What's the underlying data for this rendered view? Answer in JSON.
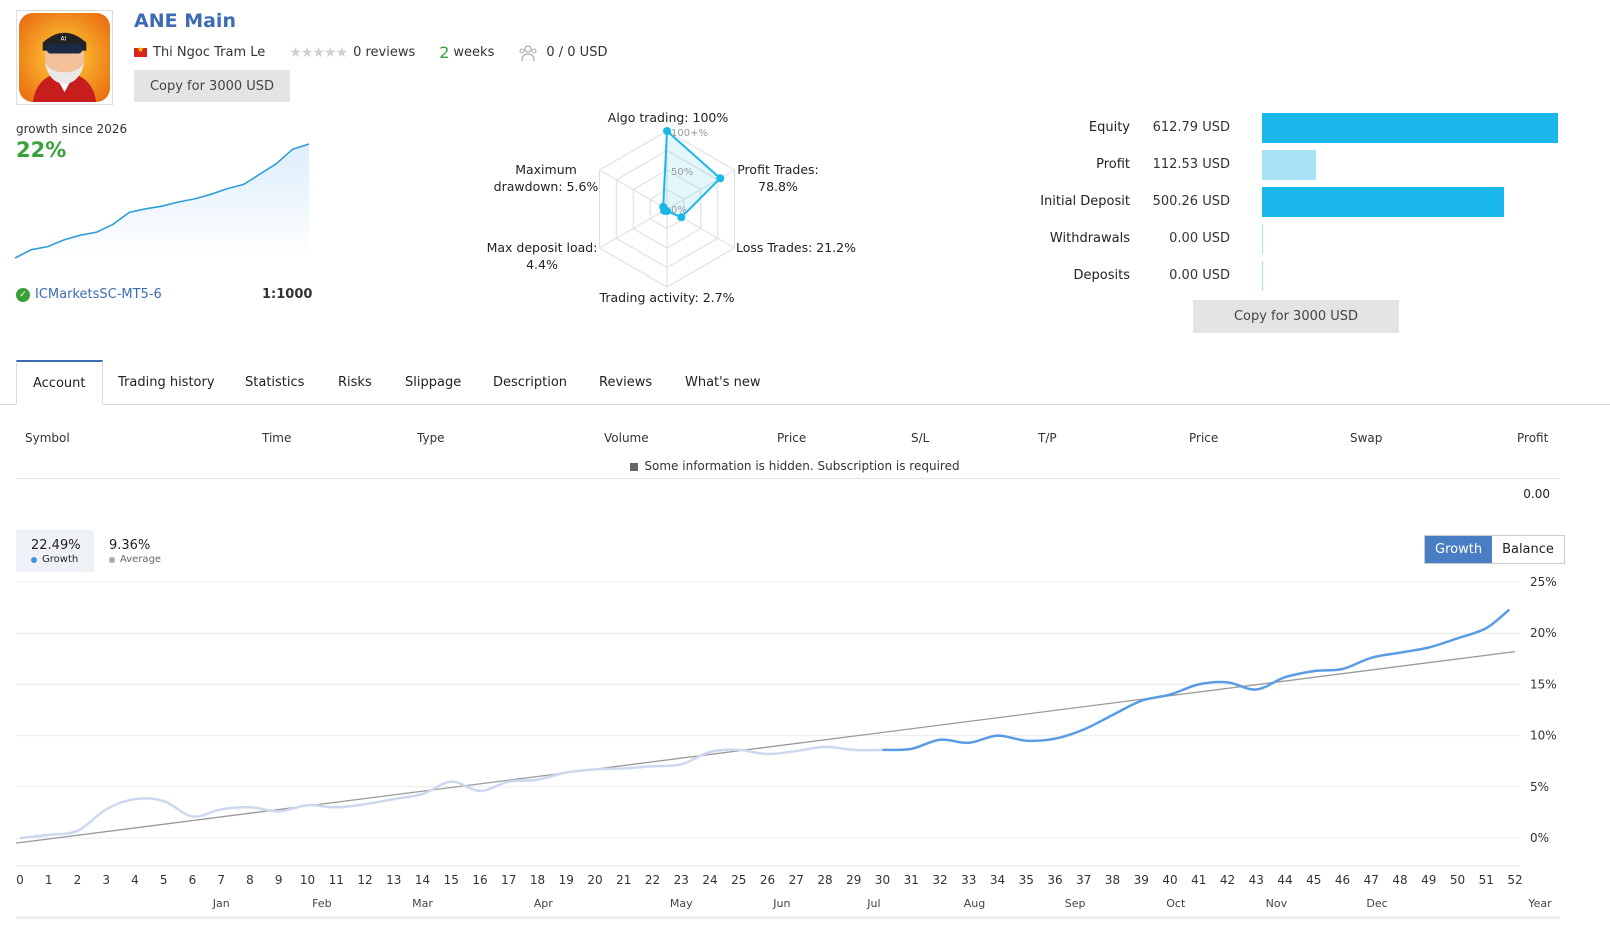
{
  "header": {
    "title": "ANE Main",
    "author": "Thi Ngoc Tram Le",
    "reviews": "0 reviews",
    "weeks_num": "2",
    "weeks_unit": "weeks",
    "subscribers": "0 / 0 USD",
    "copy_label": "Copy for 3000 USD",
    "star_rating": 0
  },
  "summary": {
    "growth_label": "growth since 2026",
    "growth_value": "22%",
    "broker": "ICMarketsSC-MT5-6",
    "leverage": "1:1000"
  },
  "radar": {
    "algo": "Algo trading: 100%",
    "profit_1": "Profit Trades:",
    "profit_2": "78.8%",
    "loss": "Loss Trades: 21.2%",
    "activity": "Trading activity: 2.7%",
    "load_1": "Max deposit load:",
    "load_2": "4.4%",
    "dd_1": "Maximum",
    "dd_2": "drawdown: 5.6%",
    "tick_100": "100+%",
    "tick_50": "50%",
    "tick_0": "0%",
    "values": [
      100,
      78.8,
      21.2,
      2.7,
      4.4,
      5.6
    ]
  },
  "stats": [
    {
      "label": "Equity",
      "value": "612.79 USD",
      "bar": 612.79,
      "color": "#1ab7ea"
    },
    {
      "label": "Profit",
      "value": "112.53 USD",
      "bar": 112.53,
      "color": "#a8e2f7"
    },
    {
      "label": "Initial Deposit",
      "value": "500.26 USD",
      "bar": 500.26,
      "color": "#1ab7ea"
    },
    {
      "label": "Withdrawals",
      "value": "0.00 USD",
      "bar": 0,
      "color": "#a8e2f7"
    },
    {
      "label": "Deposits",
      "value": "0.00 USD",
      "bar": 0,
      "color": "#a8e2f7"
    }
  ],
  "tabs": [
    "Account",
    "Trading history",
    "Statistics",
    "Risks",
    "Slippage",
    "Description",
    "Reviews",
    "What's new"
  ],
  "table": {
    "headers": [
      "Symbol",
      "Time",
      "Type",
      "Volume",
      "Price",
      "S/L",
      "T/P",
      "Price",
      "Swap",
      "Profit"
    ],
    "hidden_note": "Some information is hidden. Subscription is required",
    "total_profit": "0.00"
  },
  "chart_data": {
    "type": "line",
    "growth_value": "22.49%",
    "growth_label": "Growth",
    "average_value": "9.36%",
    "average_label": "Average",
    "toggle_growth": "Growth",
    "toggle_balance": "Balance",
    "x_axis_label": "Year",
    "x_ticks": [
      "0",
      "1",
      "2",
      "3",
      "4",
      "5",
      "6",
      "7",
      "8",
      "9",
      "10",
      "11",
      "12",
      "13",
      "14",
      "15",
      "16",
      "17",
      "18",
      "19",
      "20",
      "21",
      "22",
      "23",
      "24",
      "25",
      "26",
      "27",
      "28",
      "29",
      "30",
      "31",
      "32",
      "33",
      "34",
      "35",
      "36",
      "37",
      "38",
      "39",
      "40",
      "41",
      "42",
      "43",
      "44",
      "45",
      "46",
      "47",
      "48",
      "49",
      "50",
      "51",
      "52"
    ],
    "months": [
      {
        "label": "Jan",
        "week": 7
      },
      {
        "label": "Feb",
        "week": 10.5
      },
      {
        "label": "Mar",
        "week": 14
      },
      {
        "label": "Apr",
        "week": 18.2
      },
      {
        "label": "May",
        "week": 23
      },
      {
        "label": "Jun",
        "week": 26.5
      },
      {
        "label": "Jul",
        "week": 29.7
      },
      {
        "label": "Aug",
        "week": 33.2
      },
      {
        "label": "Sep",
        "week": 36.7
      },
      {
        "label": "Oct",
        "week": 40.2
      },
      {
        "label": "Nov",
        "week": 43.7
      },
      {
        "label": "Dec",
        "week": 47.2
      }
    ],
    "y_ticks": [
      "25%",
      "20%",
      "15%",
      "10%",
      "5%",
      "0%"
    ],
    "ylim": [
      0,
      25
    ],
    "history_series": {
      "name": "history",
      "x": [
        0,
        1,
        2,
        3,
        4,
        5,
        6,
        7,
        8,
        9,
        10,
        11,
        12,
        13,
        14,
        15,
        16,
        17,
        18,
        19,
        20,
        21,
        22,
        23,
        24,
        25,
        26,
        27,
        28,
        29,
        30
      ],
      "values": [
        0.0,
        0.3,
        0.7,
        2.8,
        3.8,
        3.6,
        2.1,
        2.8,
        3.0,
        2.6,
        3.2,
        3.0,
        3.3,
        3.8,
        4.3,
        5.5,
        4.6,
        5.5,
        5.7,
        6.4,
        6.7,
        6.8,
        7.0,
        7.2,
        8.4,
        8.6,
        8.2,
        8.5,
        8.9,
        8.6,
        8.6
      ]
    },
    "growth_series": {
      "name": "growth",
      "x": [
        30,
        31,
        32,
        33,
        34,
        35,
        36,
        37,
        38,
        39,
        40,
        41,
        42,
        43,
        44,
        45,
        46,
        47,
        48,
        49,
        50,
        51,
        51.8
      ],
      "values": [
        8.6,
        8.7,
        9.6,
        9.3,
        10.0,
        9.5,
        9.7,
        10.6,
        12.0,
        13.4,
        14.0,
        15.0,
        15.2,
        14.5,
        15.7,
        16.3,
        16.5,
        17.6,
        18.1,
        18.6,
        19.5,
        20.5,
        22.3
      ]
    },
    "trend": {
      "x": [
        0,
        52
      ],
      "values": [
        -0.5,
        18.2
      ]
    },
    "mini_growth": [
      0,
      1.6,
      2.2,
      3.5,
      4.4,
      5.0,
      6.5,
      8.8,
      9.5,
      10.0,
      10.8,
      11.4,
      12.3,
      13.4,
      14.2,
      16.2,
      18.2,
      21.0,
      22.0
    ]
  }
}
